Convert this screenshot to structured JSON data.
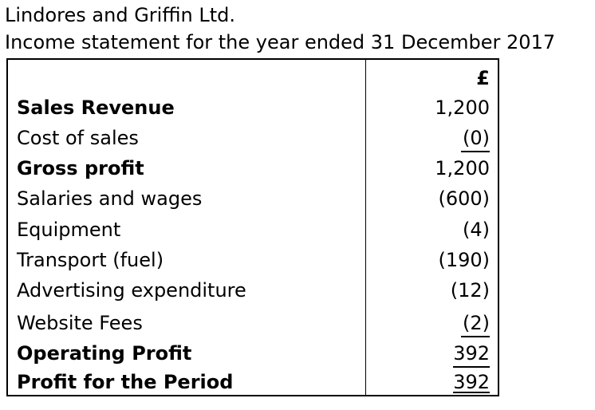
{
  "header": {
    "company": "Lindores and Griffin Ltd.",
    "title": "Income statement for the year ended 31 December 2017"
  },
  "statement": {
    "currency": "£",
    "rows": [
      {
        "label": "Sales Revenue",
        "amount": "1,200"
      },
      {
        "label": "Cost of sales",
        "amount": "(0)"
      },
      {
        "label": "Gross profit",
        "amount": "1,200"
      },
      {
        "label": "Salaries and wages",
        "amount": "(600)"
      },
      {
        "label": "Equipment",
        "amount": "(4)"
      },
      {
        "label": "Transport (fuel)",
        "amount": "(190)"
      },
      {
        "label": "Advertising expenditure",
        "amount": "(12)"
      },
      {
        "label": "Website Fees",
        "amount": "(2)"
      },
      {
        "label": "Operating Profit",
        "amount": "392"
      },
      {
        "label": "Profit for the Period",
        "amount": "392"
      }
    ]
  }
}
